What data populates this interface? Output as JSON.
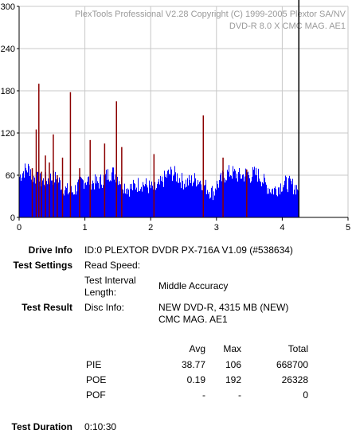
{
  "chart_data": {
    "type": "bar",
    "header_line1": "PlexTools Professional V2.28 Copyright (C) 1999-2005 Plextor SA/NV",
    "header_line2": "DVD-R    8.0 X    CMC MAG. AE1",
    "xlim": [
      0,
      5
    ],
    "ylim": [
      0,
      300
    ],
    "x_ticks": [
      "0",
      "1",
      "2",
      "3",
      "4",
      "5"
    ],
    "y_ticks": [
      "0",
      "60",
      "120",
      "180",
      "240",
      "300"
    ],
    "grid": true,
    "series": [
      {
        "name": "",
        "color": "#0000ff",
        "x_end": 4.24,
        "baseline": 50
      },
      {
        "name": "",
        "color": "#8b0000",
        "spikes": [
          {
            "x": 0.2,
            "y": 70
          },
          {
            "x": 0.26,
            "y": 125
          },
          {
            "x": 0.3,
            "y": 190
          },
          {
            "x": 0.34,
            "y": 65
          },
          {
            "x": 0.4,
            "y": 88
          },
          {
            "x": 0.46,
            "y": 78
          },
          {
            "x": 0.52,
            "y": 118
          },
          {
            "x": 0.58,
            "y": 60
          },
          {
            "x": 0.66,
            "y": 85
          },
          {
            "x": 0.78,
            "y": 178
          },
          {
            "x": 0.92,
            "y": 70
          },
          {
            "x": 1.08,
            "y": 110
          },
          {
            "x": 1.3,
            "y": 105
          },
          {
            "x": 1.48,
            "y": 165
          },
          {
            "x": 1.56,
            "y": 100
          },
          {
            "x": 2.05,
            "y": 90
          },
          {
            "x": 2.8,
            "y": 145
          },
          {
            "x": 3.1,
            "y": 85
          },
          {
            "x": 3.46,
            "y": 68
          }
        ]
      }
    ],
    "cursor_x": 4.24
  },
  "info": {
    "drive_info_label": "Drive Info",
    "drive_info_value": "ID:0 PLEXTOR DVDR PX-716A V1.09 (#538634)",
    "test_settings_label": "Test Settings",
    "read_speed_label": "Read Speed:",
    "read_speed_value": "",
    "interval_label_1": "Test Interval",
    "interval_label_2": "Length:",
    "interval_value": "Middle Accuracy",
    "test_result_label": "Test Result",
    "disc_info_label": "Disc Info:",
    "disc_info_line1": "NEW DVD-R, 4315 MB (NEW)",
    "disc_info_line2": "CMC MAG. AE1",
    "test_duration_label": "Test Duration",
    "test_duration_value": "0:10:30"
  },
  "results": {
    "headers": [
      "Avg",
      "Max",
      "Total"
    ],
    "rows": [
      {
        "name": "PIE",
        "avg": "38.77",
        "max": "106",
        "total": "668700"
      },
      {
        "name": "POE",
        "avg": "0.19",
        "max": "192",
        "total": "26328"
      },
      {
        "name": "POF",
        "avg": "-",
        "max": "-",
        "total": "0"
      }
    ]
  }
}
